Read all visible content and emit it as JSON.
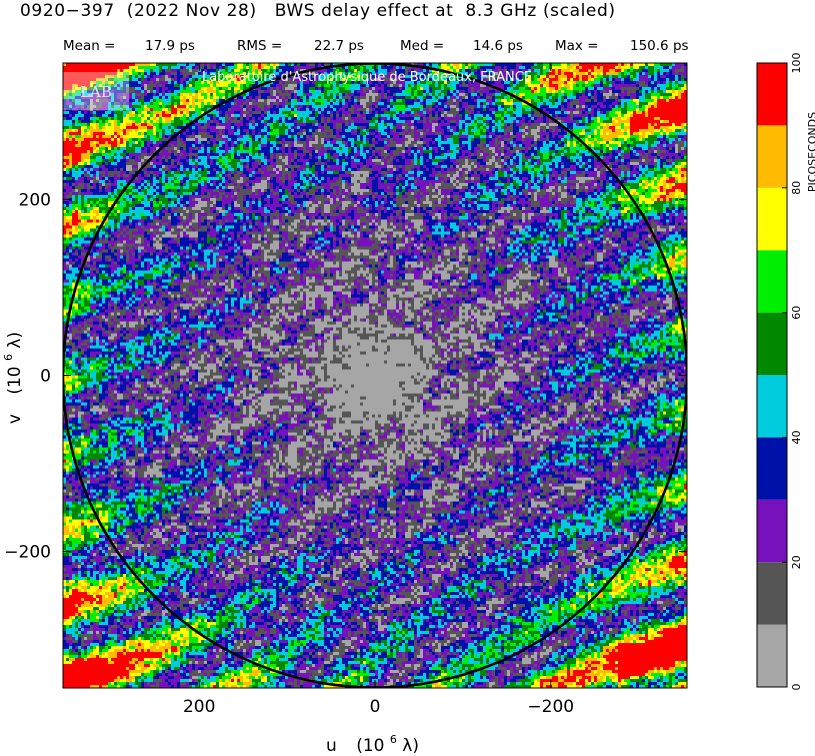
{
  "header": {
    "title": "0920−397  (2022 Nov 28)   BWS delay effect at  8.3 GHz (scaled)",
    "stats": {
      "mean_label": "Mean =",
      "mean_value": "17.9 ps",
      "rms_label": "RMS =",
      "rms_value": "22.7 ps",
      "median_label": "Med =",
      "median_value": "14.6 ps",
      "max_label": "Max =",
      "max_value": "150.6 ps"
    }
  },
  "watermark": {
    "text": "Laboratoire d'Astrophysique de Bordeaux, FRANCE",
    "logo_text": "LAB"
  },
  "chart_data": {
    "type": "heatmap",
    "title": "0920−397  (2022 Nov 28)   BWS delay effect at  8.3 GHz (scaled)",
    "xlabel": "u",
    "xlabel_unit_base": "(10",
    "xlabel_unit_exp": "6",
    "xlabel_unit_end": " λ)",
    "ylabel": "v",
    "ylabel_unit_base": "(10",
    "ylabel_unit_exp": "6",
    "ylabel_unit_end": " λ)",
    "xlim": [
      355,
      -355
    ],
    "ylim": [
      -355,
      355
    ],
    "x_ticks": [
      200,
      0,
      -200
    ],
    "x_tick_labels": [
      "200",
      "0",
      "−200"
    ],
    "y_ticks": [
      200,
      0,
      -200
    ],
    "y_tick_labels": [
      "200",
      "0",
      "−200"
    ],
    "circle_radius": 355,
    "stats": {
      "mean_ps": 17.9,
      "rms_ps": 22.7,
      "median_ps": 14.6,
      "max_ps": 150.6
    },
    "colorbar": {
      "label": "PICOSECONDS",
      "min": 0,
      "max": 100,
      "tick_values": [
        0,
        20,
        40,
        60,
        80,
        100
      ],
      "tick_labels": [
        "0",
        "20",
        "40",
        "60",
        "80",
        "100"
      ],
      "bins": [
        {
          "from": 0,
          "to": 10,
          "color": "#a6a6a6"
        },
        {
          "from": 10,
          "to": 20,
          "color": "#555555"
        },
        {
          "from": 20,
          "to": 30,
          "color": "#7711bb"
        },
        {
          "from": 30,
          "to": 40,
          "color": "#0011aa"
        },
        {
          "from": 40,
          "to": 50,
          "color": "#00ccdd"
        },
        {
          "from": 50,
          "to": 60,
          "color": "#008800"
        },
        {
          "from": 60,
          "to": 70,
          "color": "#00ee00"
        },
        {
          "from": 70,
          "to": 80,
          "color": "#ffff00"
        },
        {
          "from": 80,
          "to": 90,
          "color": "#ffbb00"
        },
        {
          "from": 90,
          "to": 100,
          "color": "#ff0000"
        }
      ]
    }
  }
}
